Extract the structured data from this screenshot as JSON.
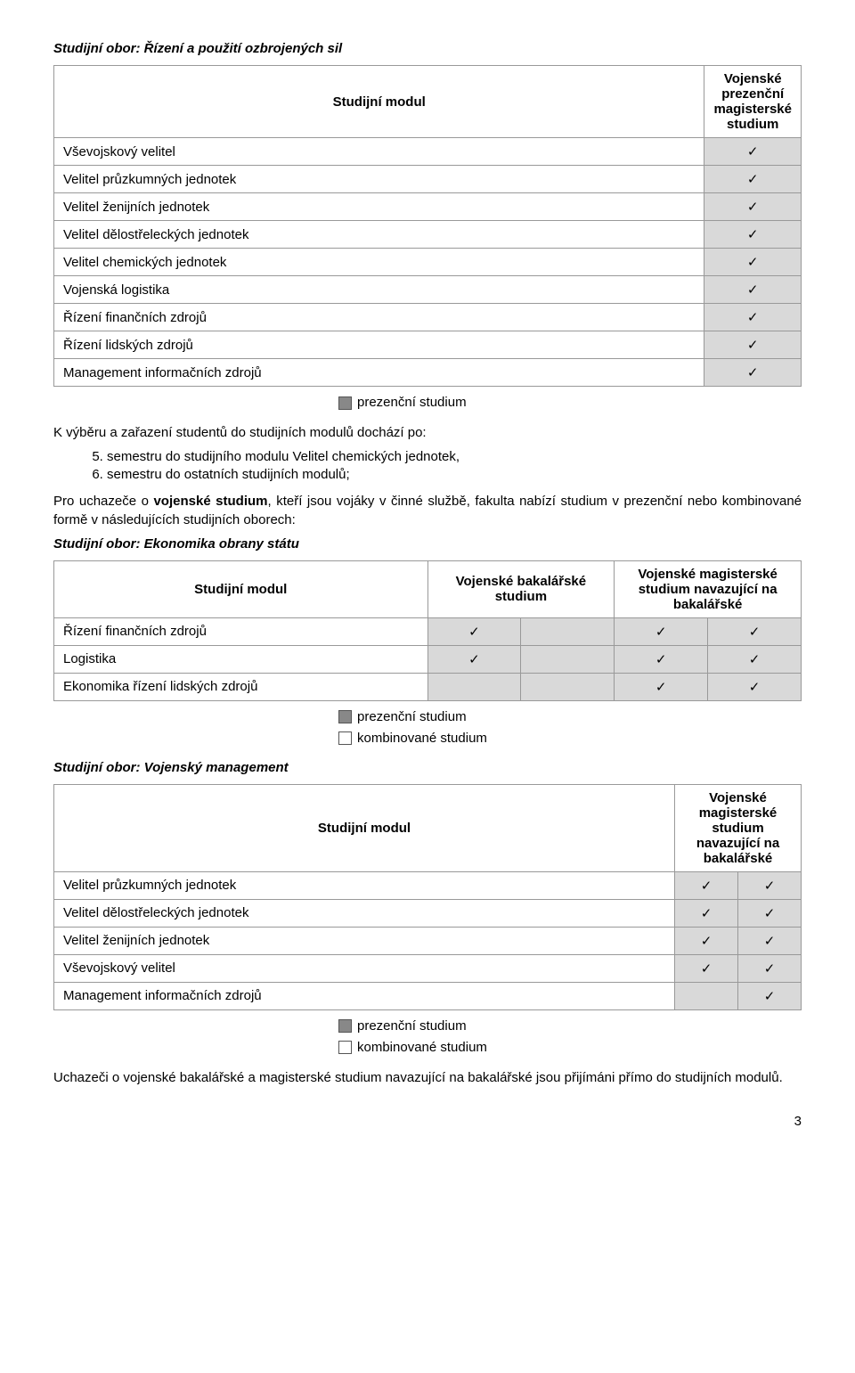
{
  "section1": {
    "title": "Studijní obor: Řízení a použití ozbrojených sil",
    "header_module": "Studijní modul",
    "header_col": "Vojenské prezenční magisterské studium",
    "rows": [
      "Vševojskový velitel",
      "Velitel průzkumných jednotek",
      "Velitel ženijních jednotek",
      "Velitel dělostřeleckých jednotek",
      "Velitel chemických jednotek",
      "Vojenská logistika",
      "Řízení finančních zdrojů",
      "Řízení lidských zdrojů",
      "Management informačních zdrojů"
    ],
    "legend": [
      "prezenční studium"
    ]
  },
  "note1": "K výběru a zařazení studentů do studijních modulů dochází po:",
  "ol_start": 5,
  "ol_items": [
    "semestru do studijního modulu Velitel chemických jednotek,",
    "semestru do ostatních studijních modulů;"
  ],
  "para2": "Pro uchazeče o vojenské studium, kteří jsou vojáky v činné službě, fakulta nabízí studium v prezenční nebo kombinované formě v následujících studijních oborech:",
  "bold_in_para2": "vojenské studium",
  "section2": {
    "title": "Studijní obor: Ekonomika obrany státu",
    "header_module": "Studijní modul",
    "header_col1": "Vojenské bakalářské studium",
    "header_col2": "Vojenské magisterské studium navazující na bakalářské",
    "rows": [
      {
        "label": "Řízení finančních zdrojů",
        "c1a": "✓",
        "c1b": "",
        "c2a": "✓",
        "c2b": "✓"
      },
      {
        "label": "Logistika",
        "c1a": "✓",
        "c1b": "",
        "c2a": "✓",
        "c2b": "✓"
      },
      {
        "label": "Ekonomika řízení lidských zdrojů",
        "c1a": "",
        "c1b": "",
        "c2a": "✓",
        "c2b": "✓"
      }
    ],
    "legend": [
      "prezenční studium",
      "kombinované studium"
    ]
  },
  "section3": {
    "title": "Studijní obor: Vojenský management",
    "header_module": "Studijní modul",
    "header_col": "Vojenské magisterské studium navazující na bakalářské",
    "rows": [
      {
        "label": "Velitel průzkumných jednotek",
        "c1": "✓",
        "c2": "✓"
      },
      {
        "label": "Velitel dělostřeleckých jednotek",
        "c1": "✓",
        "c2": "✓"
      },
      {
        "label": "Velitel ženijních jednotek",
        "c1": "✓",
        "c2": "✓"
      },
      {
        "label": "Vševojskový velitel",
        "c1": "✓",
        "c2": "✓"
      },
      {
        "label": "Management informačních zdrojů",
        "c1": "",
        "c2": "✓"
      }
    ],
    "legend": [
      "prezenční studium",
      "kombinované studium"
    ]
  },
  "para3": "Uchazeči o vojenské bakalářské a magisterské studium navazující na bakalářské jsou přijímáni přímo do studijních modulů.",
  "page_number": "3",
  "check": "✓",
  "colors": {
    "cell_bg": "#d9d9d9",
    "border": "#999999",
    "legend_fill": "#888888"
  }
}
